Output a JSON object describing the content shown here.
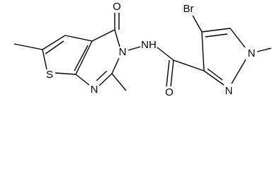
{
  "atoms": [
    {
      "label": "O"
    },
    {
      "label": "S"
    },
    {
      "label": "N"
    },
    {
      "label": "N"
    },
    {
      "label": "NH"
    },
    {
      "label": "Br"
    },
    {
      "label": "N"
    },
    {
      "label": "N"
    },
    {
      "label": "O"
    }
  ]
}
